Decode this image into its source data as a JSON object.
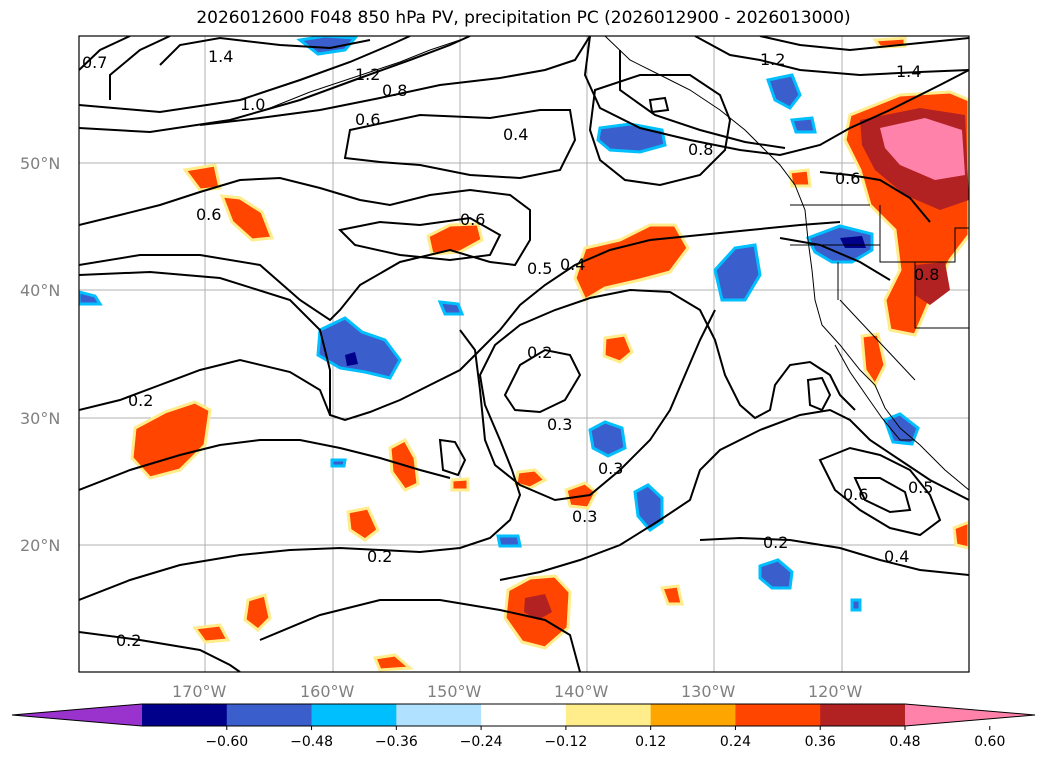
{
  "title": "2026012600 F048 850 hPa PV, precipitation PC (2026012900 - 2026013000)",
  "map": {
    "lat_labels": [
      "50°N",
      "40°N",
      "30°N",
      "20°N"
    ],
    "lon_labels": [
      "170°W",
      "160°W",
      "150°W",
      "140°W",
      "130°W",
      "120°W"
    ],
    "gridlines": true
  },
  "contour_labels": [
    "0.7",
    "1.4",
    "1.2",
    "0.8",
    "1.0",
    "0.6",
    "0.4",
    "1.2",
    "1.4",
    "0.8",
    "0.6",
    "0.6",
    "0.6",
    "0.5",
    "0.4",
    "0.2",
    "0.2",
    "0.3",
    "0.3",
    "0.3",
    "0.2",
    "0.2",
    "0.5",
    "0.6",
    "0.4",
    "0.8",
    "0.2"
  ],
  "colorbar": {
    "ticks": [
      "−0.60",
      "−0.48",
      "−0.36",
      "−0.24",
      "−0.12",
      "0.12",
      "0.24",
      "0.36",
      "0.48",
      "0.60"
    ],
    "colors": [
      "#9a32cd",
      "#00008b",
      "#3a5fcd",
      "#00bfff",
      "#b0e2ff",
      "#ffffff",
      "#ffec8b",
      "#ffa500",
      "#ff4500",
      "#b22222",
      "#ff82ab"
    ]
  }
}
